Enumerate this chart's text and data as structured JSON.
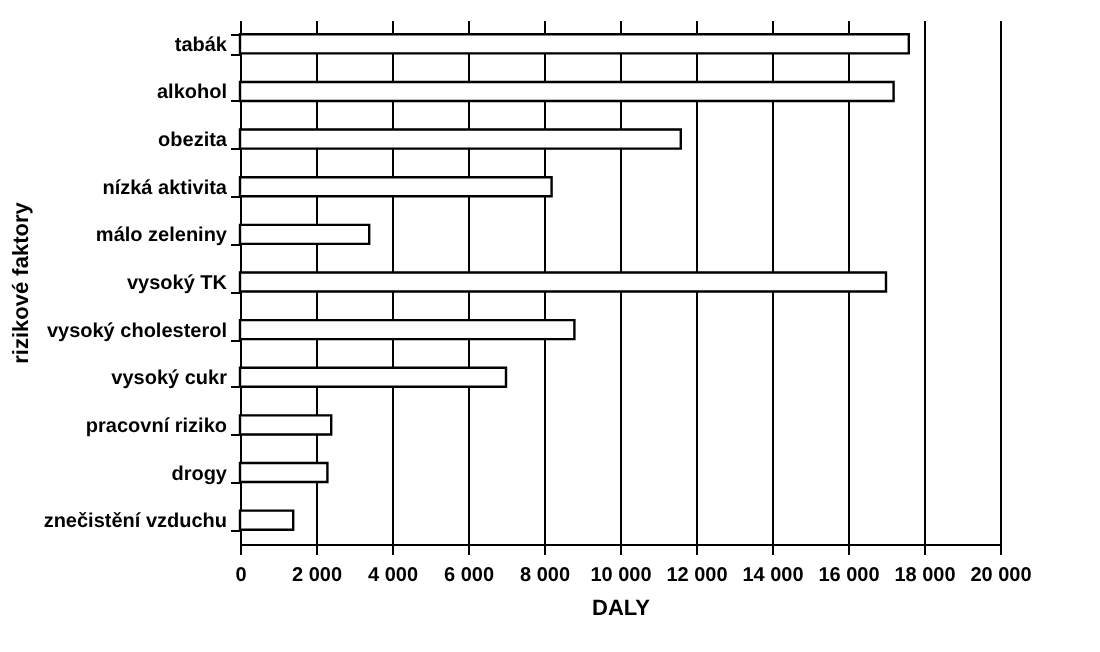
{
  "chart_data": {
    "type": "bar",
    "orientation": "horizontal",
    "xlabel": "DALY",
    "ylabel": "rizikové faktory",
    "categories": [
      "tabák",
      "alkohol",
      "obezita",
      "nízká aktivita",
      "málo zeleniny",
      "vysoký TK",
      "vysoký cholesterol",
      "vysoký cukr",
      "pracovní riziko",
      "drogy",
      "znečistění vzduchu"
    ],
    "values": [
      17600,
      17200,
      11600,
      8200,
      3400,
      17000,
      8800,
      7000,
      2400,
      2300,
      1400
    ],
    "color": "#ffffff",
    "xlim": [
      0,
      20000
    ],
    "xticks": [
      0,
      {
        "value": 2000,
        "label": "2 000"
      },
      {
        "value": 4000,
        "label": "4 000"
      },
      {
        "value": 6000,
        "label": "6 000"
      },
      {
        "value": 8000,
        "label": "8 000"
      },
      {
        "value": 10000,
        "label": "10 000"
      },
      {
        "value": 12000,
        "label": "12 000"
      },
      {
        "value": 14000,
        "label": "14 000"
      },
      {
        "value": 16000,
        "label": "16 000"
      },
      {
        "value": 18000,
        "label": "18 000"
      },
      {
        "value": 20000,
        "label": "20 000"
      }
    ],
    "grid": "x"
  }
}
